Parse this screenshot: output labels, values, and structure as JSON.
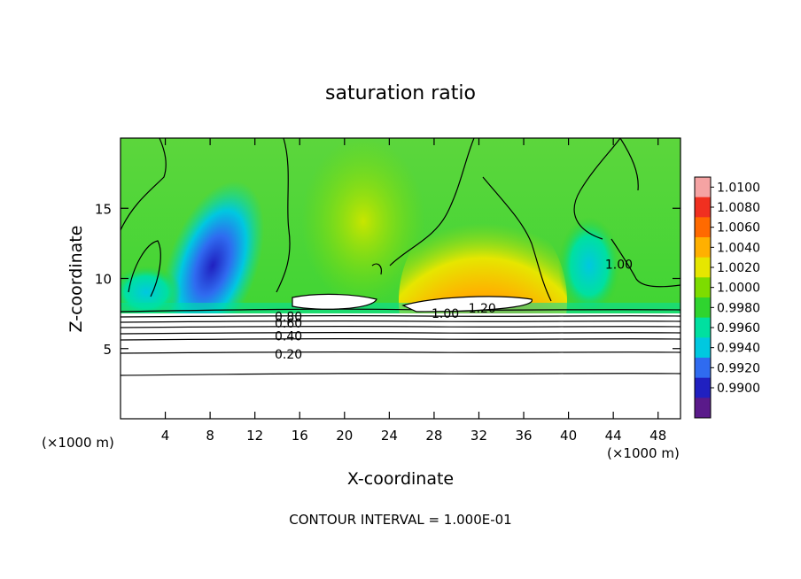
{
  "chart_data": {
    "type": "heatmap",
    "title": "saturation ratio",
    "xlabel": "X-coordinate",
    "ylabel": "Z-coordinate",
    "x_unit": "(×1000 m)",
    "xlim": [
      0,
      50
    ],
    "ylim": [
      0,
      20
    ],
    "x_ticks": [
      4,
      8,
      12,
      16,
      20,
      24,
      28,
      32,
      36,
      40,
      44,
      48
    ],
    "y_ticks": [
      5,
      10,
      15
    ],
    "footer": "CONTOUR INTERVAL = 1.000E-01",
    "colorbar": {
      "levels": [
        "1.0100",
        "1.0080",
        "1.0060",
        "1.0040",
        "1.0020",
        "1.0000",
        "0.9980",
        "0.9960",
        "0.9940",
        "0.9920",
        "0.9900"
      ],
      "colors": [
        "#f5a3a3",
        "#f03020",
        "#ff6a00",
        "#ffb000",
        "#e6e600",
        "#7ddc00",
        "#2fd42f",
        "#00e0a0",
        "#00c8e0",
        "#2f6bf0",
        "#2020c0",
        "#5a1a8a"
      ]
    },
    "contour_labels": [
      {
        "text": "0.20",
        "x": 15.0,
        "y": 4.6
      },
      {
        "text": "0.40",
        "x": 15.0,
        "y": 5.9
      },
      {
        "text": "0.60",
        "x": 15.0,
        "y": 6.8
      },
      {
        "text": "0.80",
        "x": 15.0,
        "y": 7.3
      },
      {
        "text": "1.00",
        "x": 29.0,
        "y": 7.5
      },
      {
        "text": "1.20",
        "x": 32.3,
        "y": 7.9
      },
      {
        "text": "1.00",
        "x": 44.5,
        "y": 11.0
      }
    ]
  }
}
